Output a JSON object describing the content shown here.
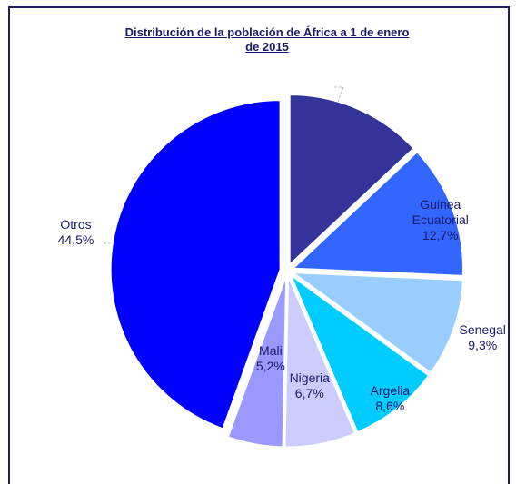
{
  "chart_data": {
    "type": "pie",
    "title": "Distribución de la población de África a 1 de enero de 2015",
    "categories": [
      null,
      "Guinea Ecuatorial",
      "Senegal",
      "Argelia",
      "Nigeria",
      "Mali",
      "Otros"
    ],
    "values": [
      13.0,
      12.7,
      9.3,
      8.6,
      6.7,
      5.2,
      44.5
    ],
    "value_labels": [
      null,
      "12,7%",
      "9,3%",
      "8,6%",
      "6,7%",
      "5,2%",
      "44,5%"
    ],
    "colors": [
      "#333399",
      "#3366ff",
      "#99ccff",
      "#00ccff",
      "#ccccff",
      "#9999ff",
      "#0000ff"
    ]
  }
}
